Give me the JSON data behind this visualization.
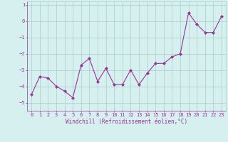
{
  "x": [
    0,
    1,
    2,
    3,
    4,
    5,
    6,
    7,
    8,
    9,
    10,
    11,
    12,
    13,
    14,
    15,
    16,
    17,
    18,
    19,
    20,
    21,
    22,
    23
  ],
  "y": [
    -4.5,
    -3.4,
    -3.5,
    -4.0,
    -4.3,
    -4.7,
    -2.7,
    -2.3,
    -3.7,
    -2.9,
    -3.9,
    -3.9,
    -3.0,
    -3.9,
    -3.2,
    -2.6,
    -2.6,
    -2.2,
    -2.0,
    0.5,
    -0.2,
    -0.7,
    -0.7,
    0.3
  ],
  "line_color": "#993399",
  "marker": "D",
  "marker_size": 2,
  "bg_color": "#d6f0f0",
  "grid_color": "#aacccc",
  "xlabel": "Windchill (Refroidissement éolien,°C)",
  "xlabel_fontsize": 5.5,
  "tick_fontsize": 5,
  "xlim": [
    -0.5,
    23.5
  ],
  "ylim": [
    -5.5,
    1.2
  ],
  "yticks": [
    1,
    0,
    -1,
    -2,
    -3,
    -4,
    -5
  ],
  "xticks": [
    0,
    1,
    2,
    3,
    4,
    5,
    6,
    7,
    8,
    9,
    10,
    11,
    12,
    13,
    14,
    15,
    16,
    17,
    18,
    19,
    20,
    21,
    22,
    23
  ]
}
